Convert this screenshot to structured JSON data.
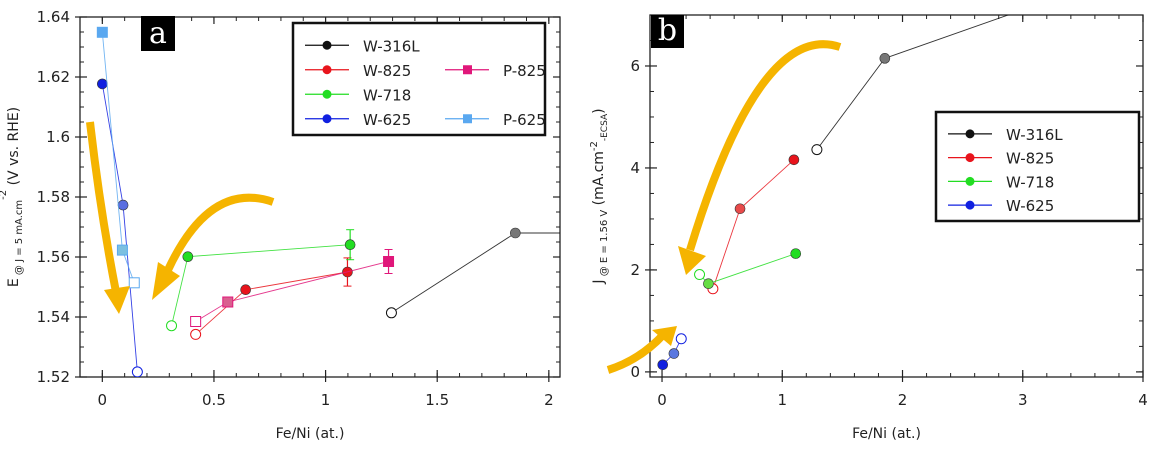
{
  "chart_data": [
    {
      "panel_label": "a",
      "type": "scatter",
      "xlabel": "Fe/Ni (at.)",
      "ylabel": {
        "main": "E",
        "sub": "@ J = 5 mA.cm",
        "sup": "-2",
        "rest": " (V vs. RHE)"
      },
      "xlim": [
        -0.1,
        2.05
      ],
      "ylim": [
        1.52,
        1.64
      ],
      "xticks": [
        0,
        0.5,
        1,
        1.5,
        2
      ],
      "xtick_labels": [
        "0",
        "0.5",
        "1",
        "1.5",
        "2"
      ],
      "yticks": [
        1.52,
        1.54,
        1.56,
        1.58,
        1.6,
        1.62,
        1.64
      ],
      "ytick_labels": [
        "1.52",
        "1.54",
        "1.56",
        "1.58",
        "1.6",
        "1.62",
        "1.64"
      ],
      "grid": false,
      "legend_position": "top-right",
      "legend_rows": [
        [
          "W-316L"
        ],
        [
          "W-825",
          "P-825"
        ],
        [
          "W-718"
        ],
        [
          "W-625",
          "P-625"
        ]
      ],
      "series": [
        {
          "name": "W-316L",
          "color": "#111111",
          "marker": "circle",
          "points": [
            {
              "x": 1.295,
              "y": 1.5414,
              "open": true
            },
            {
              "x": 1.85,
              "y": 1.568,
              "open": false,
              "fill": "#777777"
            },
            {
              "x": 2.3,
              "y": 1.568,
              "open": false,
              "hidden": true
            }
          ]
        },
        {
          "name": "W-825",
          "color": "#e8141c",
          "marker": "circle",
          "points": [
            {
              "x": 0.418,
              "y": 1.5342,
              "open": true
            },
            {
              "x": 0.642,
              "y": 1.5491,
              "open": false
            },
            {
              "x": 1.098,
              "y": 1.555,
              "open": false,
              "err": 0.0047
            }
          ]
        },
        {
          "name": "P-825",
          "color": "#e0177a",
          "marker": "square",
          "points": [
            {
              "x": 0.418,
              "y": 1.5385,
              "open": true
            },
            {
              "x": 0.562,
              "y": 1.545,
              "open": false,
              "fill": "#d9608f"
            },
            {
              "x": 1.282,
              "y": 1.5585,
              "open": false,
              "err": 0.004
            }
          ]
        },
        {
          "name": "W-718",
          "color": "#22dd22",
          "marker": "circle",
          "points": [
            {
              "x": 0.31,
              "y": 1.5371,
              "open": true
            },
            {
              "x": 0.383,
              "y": 1.5601,
              "open": false
            },
            {
              "x": 1.11,
              "y": 1.5641,
              "open": false,
              "err": 0.005
            }
          ]
        },
        {
          "name": "W-625",
          "color": "#1020e0",
          "marker": "circle",
          "points": [
            {
              "x": 0,
              "y": 1.6177,
              "open": false
            },
            {
              "x": 0.093,
              "y": 1.5773,
              "open": false,
              "fill": "#5a6ee0"
            },
            {
              "x": 0.157,
              "y": 1.5217,
              "open": true
            }
          ]
        },
        {
          "name": "P-625",
          "color": "#5aa8f0",
          "marker": "square",
          "points": [
            {
              "x": 0,
              "y": 1.6349,
              "open": false
            },
            {
              "x": 0.09,
              "y": 1.5623,
              "open": false,
              "fill": "#7cc0e0"
            },
            {
              "x": 0.143,
              "y": 1.5514,
              "open": true
            }
          ]
        }
      ]
    },
    {
      "panel_label": "b",
      "type": "scatter",
      "xlabel": "Fe/Ni (at.)",
      "ylabel": {
        "main": "J",
        "sub": "@ E = 1.56 V",
        "sup": "",
        "rest": " (mA.cm",
        "sup2": "-2",
        "sub2": "-ECSA",
        "close": ")"
      },
      "xlim": [
        -0.1,
        4
      ],
      "ylim": [
        -0.1,
        7
      ],
      "xticks": [
        0,
        1,
        2,
        3,
        4
      ],
      "xtick_labels": [
        "0",
        "1",
        "2",
        "3",
        "4"
      ],
      "yticks": [
        0,
        2,
        4,
        6
      ],
      "ytick_labels": [
        "0",
        "2",
        "4",
        "6"
      ],
      "grid": false,
      "legend_position": "right",
      "legend_rows": [
        [
          "W-316L"
        ],
        [
          "W-825"
        ],
        [
          "W-718"
        ],
        [
          "W-625"
        ]
      ],
      "series": [
        {
          "name": "W-316L",
          "color": "#111111",
          "marker": "circle",
          "points": [
            {
              "x": 1.288,
              "y": 4.36,
              "open": true
            },
            {
              "x": 1.853,
              "y": 6.15,
              "open": false,
              "fill": "#777777"
            },
            {
              "x": 3.3,
              "y": 7.35,
              "open": false,
              "hidden": true
            }
          ]
        },
        {
          "name": "W-825",
          "color": "#e8141c",
          "marker": "circle",
          "points": [
            {
              "x": 0.423,
              "y": 1.63,
              "open": true
            },
            {
              "x": 0.649,
              "y": 3.2,
              "open": false,
              "fill": "#e84a4a"
            },
            {
              "x": 1.097,
              "y": 4.16,
              "open": false
            }
          ]
        },
        {
          "name": "W-718",
          "color": "#22dd22",
          "marker": "circle",
          "points": [
            {
              "x": 0.312,
              "y": 1.91,
              "open": true
            },
            {
              "x": 0.386,
              "y": 1.73,
              "open": false,
              "fill": "#66dd44"
            },
            {
              "x": 1.112,
              "y": 2.32,
              "open": false
            }
          ]
        },
        {
          "name": "W-625",
          "color": "#1020e0",
          "marker": "circle",
          "points": [
            {
              "x": 0.006,
              "y": 0.14,
              "open": false
            },
            {
              "x": 0.099,
              "y": 0.36,
              "open": false,
              "fill": "#5a78e0"
            },
            {
              "x": 0.16,
              "y": 0.65,
              "open": true
            }
          ]
        }
      ]
    }
  ],
  "annotations": {
    "arrow_color": "#f5b400"
  }
}
